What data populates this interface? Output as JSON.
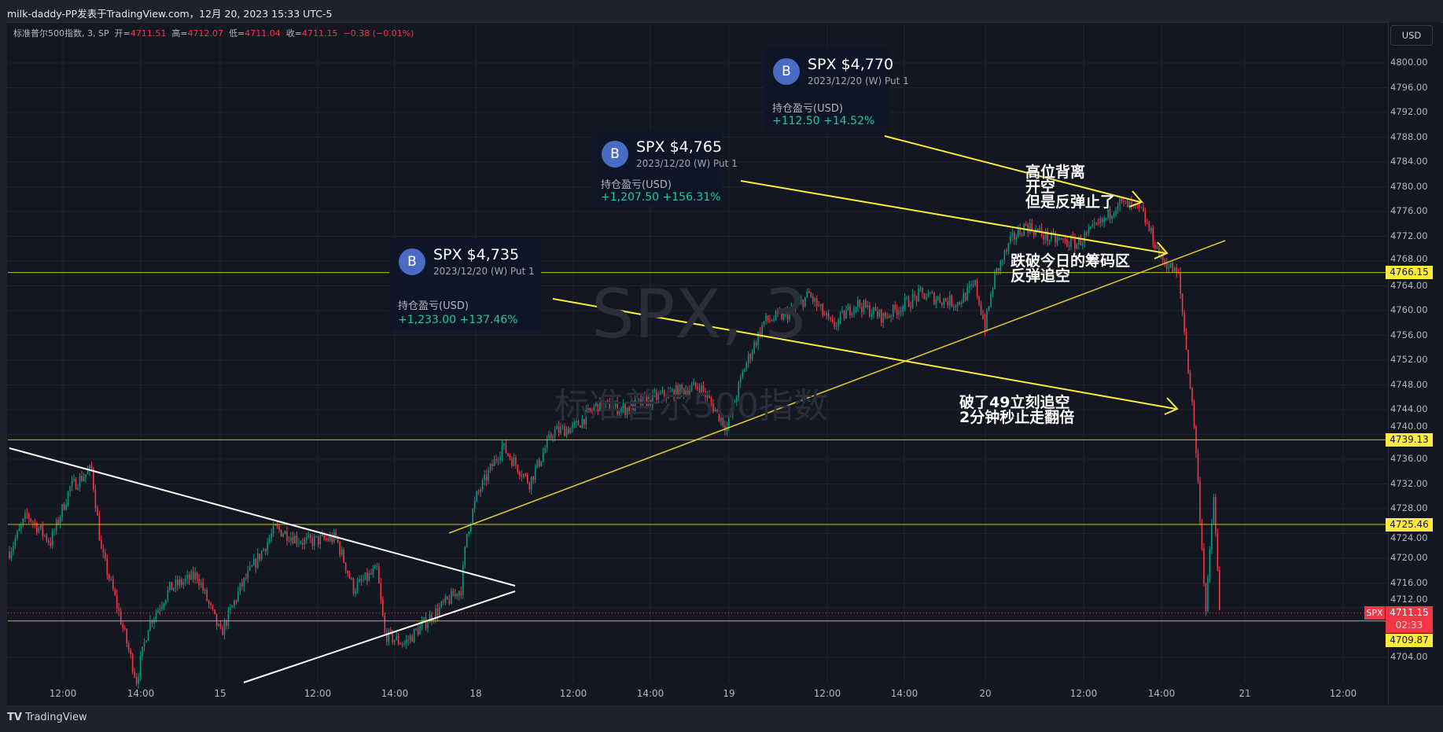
{
  "header": {
    "title": "milk-daddy-PP发表于TradingView.com，12月 20, 2023 15:33 UTC-5"
  },
  "legend": {
    "symbol": "标准普尔500指数, 3, SP",
    "open_label": "开=",
    "open": "4711.51",
    "high_label": "高=",
    "high": "4712.07",
    "low_label": "低=",
    "low": "4711.04",
    "close_label": "收=",
    "close": "4711.15",
    "change": "−0.38 (−0.01%)"
  },
  "currency_button": "USD",
  "watermark": {
    "symbol": "SPX, 3",
    "name": "标准普尔500指数"
  },
  "price_axis": {
    "ticks": [
      "4800.00",
      "4796.00",
      "4792.00",
      "4788.00",
      "4784.00",
      "4780.00",
      "4776.00",
      "4772.00",
      "4768.00",
      "4764.00",
      "4760.00",
      "4756.00",
      "4752.00",
      "4748.00",
      "4744.00",
      "4740.00",
      "4736.00",
      "4732.00",
      "4728.00",
      "4724.00",
      "4720.00",
      "4716.00",
      "4712.00",
      "4704.00"
    ],
    "levels": [
      "4766.15",
      "4739.13",
      "4725.46",
      "4709.87"
    ],
    "last": {
      "symbol": "SPX",
      "price": "4711.15",
      "countdown": "02:33"
    }
  },
  "time_axis": [
    "12:00",
    "14:00",
    "15",
    "12:00",
    "14:00",
    "18",
    "12:00",
    "14:00",
    "19",
    "12:00",
    "14:00",
    "20",
    "12:00",
    "14:00",
    "21",
    "12:00"
  ],
  "cards": [
    {
      "avatar": "B",
      "title": "SPX $4,735",
      "subtitle": "2023/12/20 (W) Put 1",
      "pnl_label": "持仓盈亏(USD)",
      "pnl": "+1,233.00 +137.46%"
    },
    {
      "avatar": "B",
      "title": "SPX $4,765",
      "subtitle": "2023/12/20 (W) Put 1",
      "pnl_label": "持仓盈亏(USD)",
      "pnl": "+1,207.50 +156.31%"
    },
    {
      "avatar": "B",
      "title": "SPX $4,770",
      "subtitle": "2023/12/20 (W) Put 1",
      "pnl_label": "持仓盈亏(USD)",
      "pnl": "+112.50 +14.52%"
    }
  ],
  "notes": [
    "高位背离\n开空\n但是反弹止了",
    "跌破今日的筹码区\n反弹追空",
    "破了49立刻追空\n2分钟秒止走翻倍"
  ],
  "footer": "TradingView",
  "colors": {
    "up": "#089981",
    "down": "#f23645",
    "drawing": "#ffeb3b",
    "trend": "#ffffff"
  },
  "chart_data": {
    "type": "candlestick",
    "symbol": "SPX",
    "interval": "3",
    "ylim": [
      4700,
      4802
    ],
    "price_path": [
      [
        0,
        4721.1
      ],
      [
        9,
        4727.0
      ],
      [
        21,
        4722.6
      ],
      [
        31,
        4731.4
      ],
      [
        42,
        4734.4
      ],
      [
        47,
        4721.1
      ],
      [
        54,
        4713.6
      ],
      [
        65,
        4700.3
      ],
      [
        71,
        4709.2
      ],
      [
        82,
        4715.1
      ],
      [
        96,
        4717.3
      ],
      [
        108,
        4707.7
      ],
      [
        118,
        4715.1
      ],
      [
        136,
        4724.8
      ],
      [
        151,
        4722.6
      ],
      [
        167,
        4723.3
      ],
      [
        176,
        4715.1
      ],
      [
        188,
        4718.1
      ],
      [
        192,
        4707.7
      ],
      [
        202,
        4706.2
      ],
      [
        216,
        4710.7
      ],
      [
        231,
        4715.1
      ],
      [
        234,
        4724.0
      ],
      [
        239,
        4730.0
      ],
      [
        252,
        4738.1
      ],
      [
        266,
        4732.2
      ],
      [
        278,
        4740.4
      ],
      [
        289,
        4741.1
      ],
      [
        301,
        4744.8
      ],
      [
        315,
        4744.1
      ],
      [
        334,
        4746.3
      ],
      [
        353,
        4747.8
      ],
      [
        367,
        4741.1
      ],
      [
        376,
        4750.8
      ],
      [
        386,
        4758.2
      ],
      [
        400,
        4759.7
      ],
      [
        409,
        4762.6
      ],
      [
        421,
        4757.4
      ],
      [
        433,
        4761.2
      ],
      [
        447,
        4758.9
      ],
      [
        466,
        4762.6
      ],
      [
        485,
        4761.2
      ],
      [
        494,
        4764.1
      ],
      [
        499,
        4757.4
      ],
      [
        504,
        4765.6
      ],
      [
        513,
        4771.6
      ],
      [
        520,
        4773.8
      ],
      [
        532,
        4771.6
      ],
      [
        546,
        4770.8
      ],
      [
        560,
        4774.5
      ],
      [
        567,
        4777.5
      ],
      [
        579,
        4776.0
      ],
      [
        589,
        4768.6
      ],
      [
        598,
        4765.6
      ],
      [
        602,
        4753.7
      ],
      [
        606,
        4741.8
      ],
      [
        609,
        4727.0
      ],
      [
        612,
        4711.4
      ],
      [
        616,
        4730.0
      ],
      [
        619,
        4711.4
      ]
    ]
  }
}
